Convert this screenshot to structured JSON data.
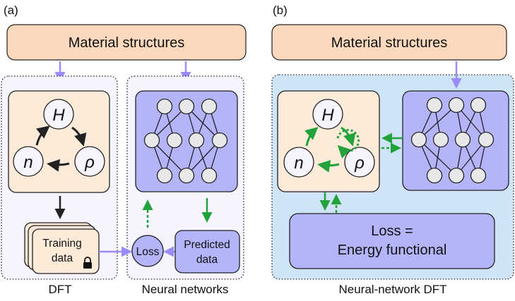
{
  "panel_a": {
    "label": "(a)",
    "top_box": "Material structures",
    "dft_cycle": {
      "h": "H",
      "n": "n",
      "rho": "ρ"
    },
    "training_data": [
      "Training",
      "data"
    ],
    "loss": "Loss",
    "predicted_data": [
      "Predicted",
      "data"
    ],
    "caption_left": "DFT",
    "caption_right": "Neural networks"
  },
  "panel_b": {
    "label": "(b)",
    "top_box": "Material structures",
    "dft_cycle": {
      "h": "H",
      "n": "n",
      "rho": "ρ"
    },
    "loss_box": [
      "Loss =",
      "Energy functional"
    ],
    "caption": "Neural-network DFT"
  },
  "colors": {
    "peach": "#fcd9bd",
    "light_peach": "#fdebd9",
    "nn_purple": "#b4b4fa",
    "arrow_purple": "#9a8cff",
    "green": "#22a23a",
    "panel_b_bg": "#cfe4f6",
    "panel_a_bg": "#f6f5ff",
    "node_gray": "#e8e8e8"
  }
}
